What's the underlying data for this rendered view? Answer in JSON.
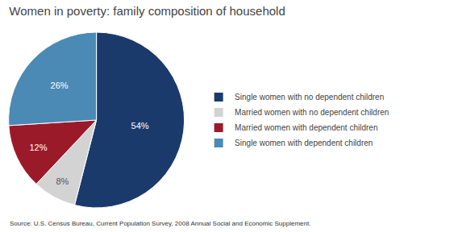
{
  "chart_data": {
    "type": "pie",
    "title": "Women in poverty: family composition of household",
    "categories": [
      "Single women with no dependent children",
      "Married women with no dependent children",
      "Married women with dependent children",
      "Single women with dependent children"
    ],
    "values": [
      54,
      8,
      12,
      26
    ],
    "value_labels": [
      "54%",
      "8%",
      "12%",
      "26%"
    ],
    "colors": [
      "#1a3a6b",
      "#d3d3d3",
      "#9b1a2a",
      "#4a8ab5"
    ],
    "data_labels": true,
    "legend": "right",
    "annotations": [
      "Source: U.S. Census Bureau, Current Population Survey, 2008 Annual Social and Economic Supplement."
    ]
  }
}
